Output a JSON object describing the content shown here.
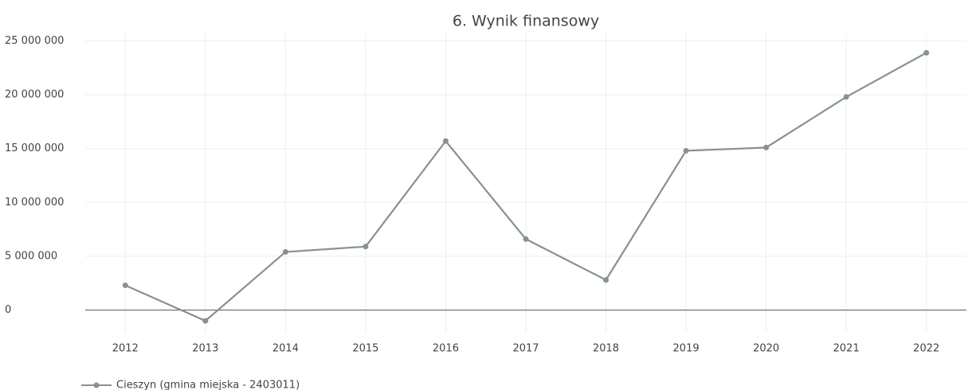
{
  "chart_data": {
    "type": "line",
    "title": "6. Wynik finansowy",
    "categories": [
      "2012",
      "2013",
      "2014",
      "2015",
      "2016",
      "2017",
      "2018",
      "2019",
      "2020",
      "2021",
      "2022"
    ],
    "series": [
      {
        "name": "Cieszyn (gmina miejska - 2403011)",
        "color": "#869291",
        "values": [
          2300000,
          -1000000,
          5400000,
          5900000,
          15700000,
          6600000,
          2800000,
          14800000,
          15100000,
          19800000,
          23900000
        ]
      }
    ],
    "ylim": [
      -2100000,
      25700000
    ],
    "yticks": [
      0,
      {
        "value": 5000000,
        "label": "5 000 000"
      },
      {
        "value": 10000000,
        "label": "10 000 000"
      },
      {
        "value": 15000000,
        "label": "15 000 000"
      },
      {
        "value": 20000000,
        "label": "20 000 000"
      },
      {
        "value": 25000000,
        "label": "25 000 000"
      }
    ],
    "grid": true,
    "legend": "bottom-left"
  }
}
